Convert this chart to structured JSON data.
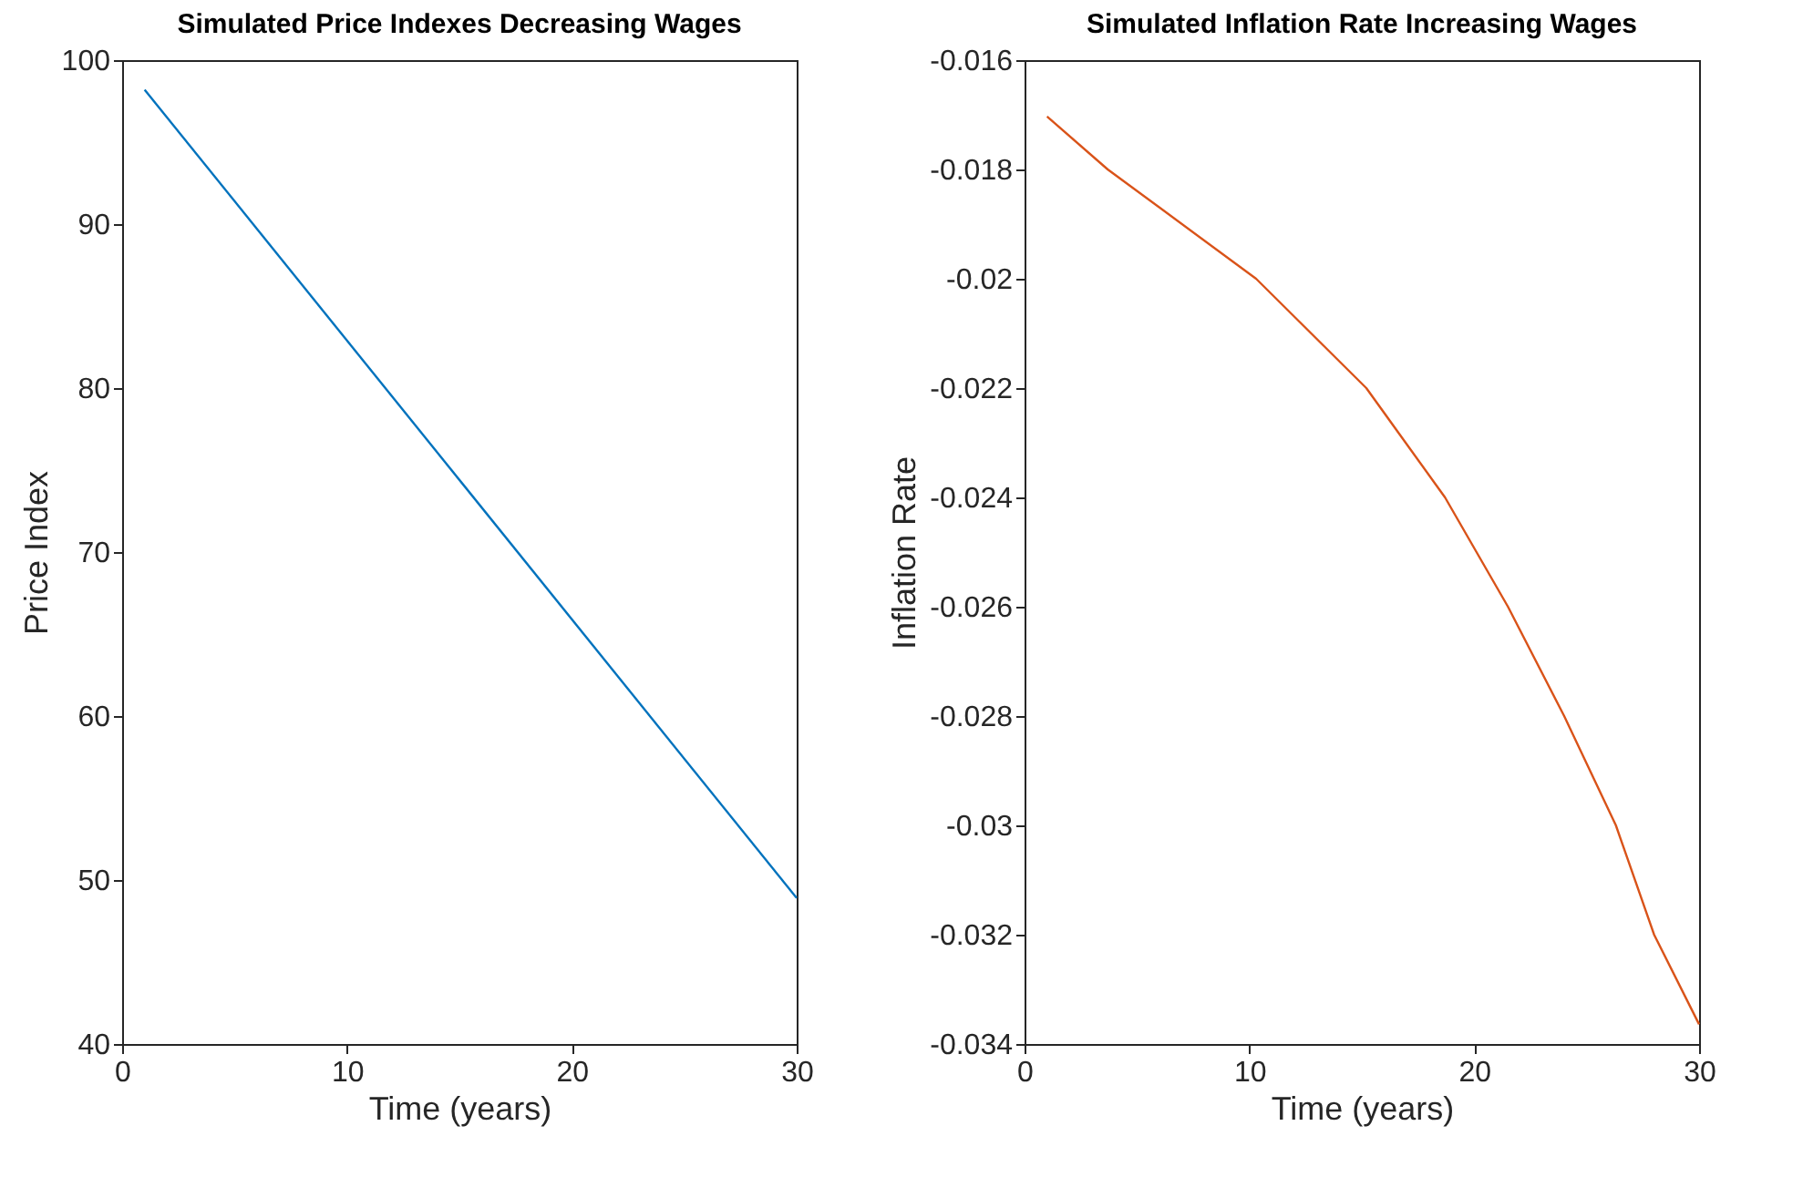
{
  "chart_data": [
    {
      "type": "line",
      "title": "Simulated Price Indexes Decreasing Wages",
      "xlabel": "Time (years)",
      "ylabel": "Price Index",
      "xlim": [
        0,
        30
      ],
      "xticks": [
        0,
        10,
        20,
        30
      ],
      "ylim": [
        40,
        100
      ],
      "yticks": [
        40,
        50,
        60,
        70,
        80,
        90,
        100
      ],
      "grid": false,
      "marker": "none",
      "line_style": "solid",
      "series": [
        {
          "color": "#0072bd",
          "x": [
            1,
            30
          ],
          "values": [
            98.2,
            48.9
          ]
        }
      ]
    },
    {
      "type": "line",
      "title": "Simulated Inflation Rate Increasing Wages",
      "xlabel": "Time (years)",
      "ylabel": "Inflation Rate",
      "xlim": [
        0,
        30
      ],
      "xticks": [
        0,
        10,
        20,
        30
      ],
      "ylim": [
        -0.034,
        -0.016
      ],
      "yticks": [
        -0.034,
        -0.032,
        -0.03,
        -0.028,
        -0.026,
        -0.024,
        -0.022,
        -0.02,
        -0.018,
        -0.016
      ],
      "grid": false,
      "marker": "none",
      "line_style": "solid",
      "series": [
        {
          "color": "#d95319",
          "x": [
            1,
            3.7,
            10.3,
            15.2,
            18.7,
            21.5,
            24.0,
            26.3,
            28.0,
            30
          ],
          "values": [
            -0.01703,
            -0.018,
            -0.02,
            -0.022,
            -0.024,
            -0.026,
            -0.028,
            -0.03,
            -0.032,
            -0.03364
          ]
        }
      ]
    }
  ]
}
